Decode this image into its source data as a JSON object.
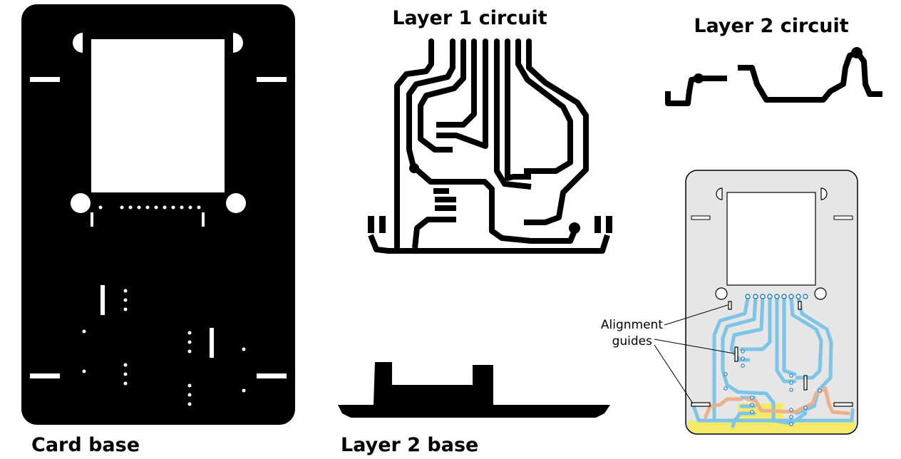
{
  "labels": {
    "card_base": "Card base",
    "layer1_circuit": "Layer 1 circuit",
    "layer2_circuit": "Layer 2 circuit",
    "layer2_base": "Layer 2 base",
    "alignment_line1": "Alignment",
    "alignment_line2": "guides"
  },
  "colors": {
    "ink": "#000000",
    "background": "#ffffff",
    "card_fill": "#e6e6e6",
    "layer1_trace": "#7cc4e8",
    "layer2_trace": "#ecb08f",
    "base_overlay": "#f5e96a"
  }
}
